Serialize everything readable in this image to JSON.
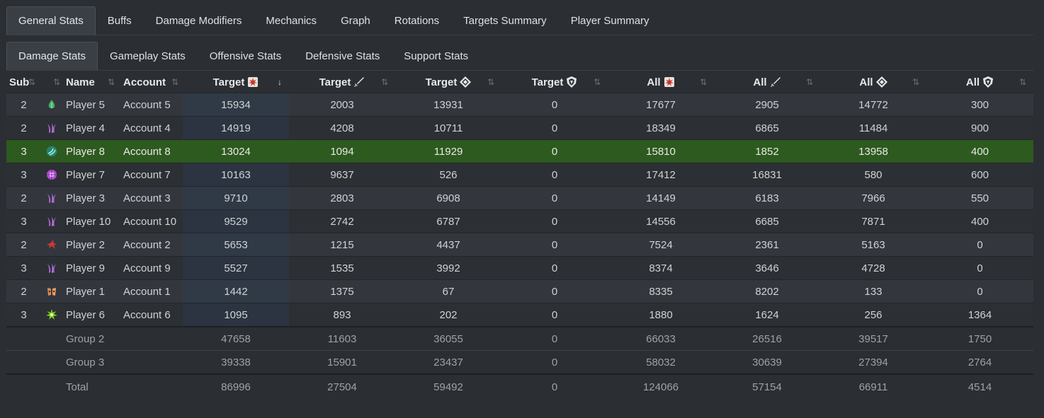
{
  "main_tabs": [
    "General Stats",
    "Buffs",
    "Damage Modifiers",
    "Mechanics",
    "Graph",
    "Rotations",
    "Targets Summary",
    "Player Summary"
  ],
  "sub_tabs": [
    "Damage Stats",
    "Gameplay Stats",
    "Offensive Stats",
    "Defensive Stats",
    "Support Stats"
  ],
  "columns": {
    "sub": "Sub",
    "name": "Name",
    "account": "Account",
    "t1": "Target",
    "t2": "Target",
    "t3": "Target",
    "t4": "Target",
    "a1": "All",
    "a2": "All",
    "a3": "All",
    "a4": "All",
    "sort_glyph": "⇅",
    "sort_active_glyph": "↓"
  },
  "rows": [
    {
      "sub": "2",
      "prof_icon": "druid-leaf-icon",
      "name": "Player 5",
      "account": "Account 5",
      "t1": "15934",
      "t2": "2003",
      "t3": "13931",
      "t4": "0",
      "a1": "17677",
      "a2": "2905",
      "a3": "14772",
      "a4": "300"
    },
    {
      "sub": "2",
      "prof_icon": "claw-purple-icon",
      "name": "Player 4",
      "account": "Account 4",
      "t1": "14919",
      "t2": "4208",
      "t3": "10711",
      "t4": "0",
      "a1": "18349",
      "a2": "6865",
      "a3": "11484",
      "a4": "900"
    },
    {
      "sub": "3",
      "prof_icon": "swirl-teal-icon",
      "name": "Player 8",
      "account": "Account 8",
      "t1": "13024",
      "t2": "1094",
      "t3": "11929",
      "t4": "0",
      "a1": "15810",
      "a2": "1852",
      "a3": "13958",
      "a4": "400",
      "selected": true
    },
    {
      "sub": "3",
      "prof_icon": "orb-magenta-icon",
      "name": "Player 7",
      "account": "Account 7",
      "t1": "10163",
      "t2": "9637",
      "t3": "526",
      "t4": "0",
      "a1": "17412",
      "a2": "16831",
      "a3": "580",
      "a4": "600"
    },
    {
      "sub": "2",
      "prof_icon": "claw-purple-icon",
      "name": "Player 3",
      "account": "Account 3",
      "t1": "9710",
      "t2": "2803",
      "t3": "6908",
      "t4": "0",
      "a1": "14149",
      "a2": "6183",
      "a3": "7966",
      "a4": "550"
    },
    {
      "sub": "3",
      "prof_icon": "claw-purple-icon",
      "name": "Player 10",
      "account": "Account 10",
      "t1": "9529",
      "t2": "2742",
      "t3": "6787",
      "t4": "0",
      "a1": "14556",
      "a2": "6685",
      "a3": "7871",
      "a4": "400"
    },
    {
      "sub": "2",
      "prof_icon": "bird-red-icon",
      "name": "Player 2",
      "account": "Account 2",
      "t1": "5653",
      "t2": "1215",
      "t3": "4437",
      "t4": "0",
      "a1": "7524",
      "a2": "2361",
      "a3": "5163",
      "a4": "0"
    },
    {
      "sub": "3",
      "prof_icon": "claw-purple-icon",
      "name": "Player 9",
      "account": "Account 9",
      "t1": "5527",
      "t2": "1535",
      "t3": "3992",
      "t4": "0",
      "a1": "8374",
      "a2": "3646",
      "a3": "4728",
      "a4": "0"
    },
    {
      "sub": "2",
      "prof_icon": "mask-orange-icon",
      "name": "Player 1",
      "account": "Account 1",
      "t1": "1442",
      "t2": "1375",
      "t3": "67",
      "t4": "0",
      "a1": "8335",
      "a2": "8202",
      "a3": "133",
      "a4": "0"
    },
    {
      "sub": "3",
      "prof_icon": "burst-green-icon",
      "name": "Player 6",
      "account": "Account 6",
      "t1": "1095",
      "t2": "893",
      "t3": "202",
      "t4": "0",
      "a1": "1880",
      "a2": "1624",
      "a3": "256",
      "a4": "1364"
    }
  ],
  "footer": [
    {
      "label": "Group 2",
      "t1": "47658",
      "t2": "11603",
      "t3": "36055",
      "t4": "0",
      "a1": "66033",
      "a2": "26516",
      "a3": "39517",
      "a4": "1750"
    },
    {
      "label": "Group 3",
      "t1": "39338",
      "t2": "15901",
      "t3": "23437",
      "t4": "0",
      "a1": "58032",
      "a2": "30639",
      "a3": "27394",
      "a4": "2764"
    },
    {
      "label": "Total",
      "t1": "86996",
      "t2": "27504",
      "t3": "59492",
      "t4": "0",
      "a1": "124066",
      "a2": "57154",
      "a3": "66911",
      "a4": "4514"
    }
  ],
  "colors": {
    "selected_row": "#2d5a1e",
    "highlight_column": "#303a47",
    "background": "#2b2e33"
  }
}
